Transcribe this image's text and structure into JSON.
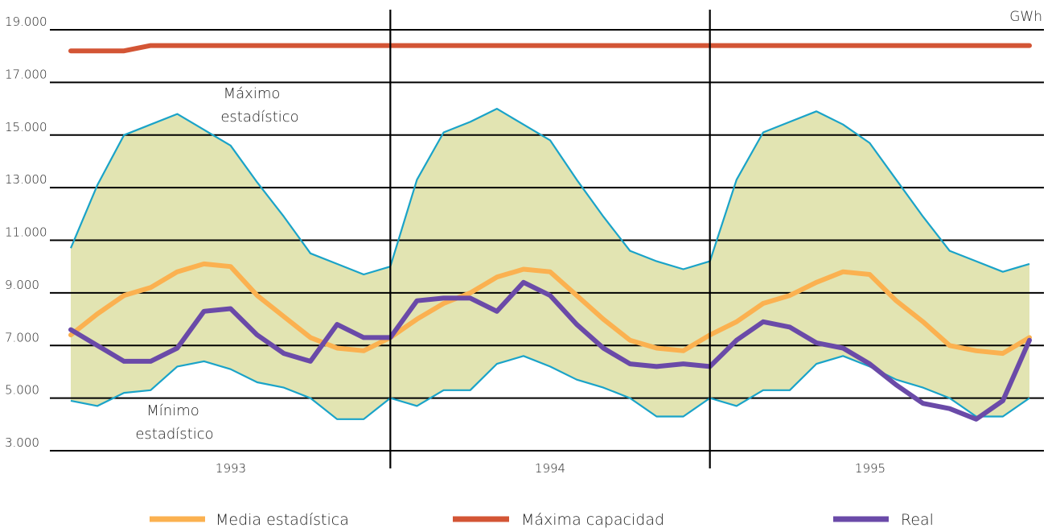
{
  "chart_data": {
    "type": "line",
    "unit": "GWh",
    "ylim": [
      3000,
      19000
    ],
    "yticks": [
      3000,
      5000,
      7000,
      9000,
      11000,
      13000,
      15000,
      17000,
      19000
    ],
    "ytick_labels": [
      "3.000",
      "5.000",
      "7.000",
      "9.000",
      "11.000",
      "13.000",
      "15.000",
      "17.000",
      "19.000"
    ],
    "years": [
      "1993",
      "1994",
      "1995"
    ],
    "annotations": {
      "max_line1": "Máximo",
      "max_line2": "estadístico",
      "min_line1": "Mínimo",
      "min_line2": "estadístico"
    },
    "band": {
      "max": [
        10700,
        13100,
        15000,
        15400,
        15800,
        15200,
        14600,
        13200,
        11900,
        10500,
        10100,
        9700,
        10000,
        13300,
        15100,
        15500,
        16000,
        15400,
        14800,
        13300,
        11900,
        10600,
        10200,
        9900,
        10200,
        13300,
        15100,
        15500,
        15900,
        15400,
        14700,
        13300,
        11900,
        10600,
        10200,
        9800,
        10100
      ],
      "min": [
        4900,
        4700,
        5200,
        5300,
        6200,
        6400,
        6100,
        5600,
        5400,
        5000,
        4200,
        4200,
        5000,
        4700,
        5300,
        5300,
        6300,
        6600,
        6200,
        5700,
        5400,
        5000,
        4300,
        4300,
        5000,
        4700,
        5300,
        5300,
        6300,
        6600,
        6200,
        5700,
        5400,
        5000,
        4300,
        4300,
        5000
      ],
      "fill_color": "#e2e4b2",
      "line_color": "#1aa3c8"
    },
    "series": [
      {
        "name": "Media estadística",
        "color": "#fbb150",
        "values": [
          7400,
          8200,
          8900,
          9200,
          9800,
          10100,
          10000,
          8900,
          8100,
          7300,
          6900,
          6800,
          7300,
          8000,
          8600,
          9000,
          9600,
          9900,
          9800,
          8900,
          8000,
          7200,
          6900,
          6800,
          7400,
          7900,
          8600,
          8900,
          9400,
          9800,
          9700,
          8700,
          7900,
          7000,
          6800,
          6700,
          7300
        ]
      },
      {
        "name": "Máxima capacidad",
        "color": "#d35535",
        "values": [
          18200,
          18200,
          18200,
          18400,
          18400,
          18400,
          18400,
          18400,
          18400,
          18400,
          18400,
          18400,
          18400,
          18400,
          18400,
          18400,
          18400,
          18400,
          18400,
          18400,
          18400,
          18400,
          18400,
          18400,
          18400,
          18400,
          18400,
          18400,
          18400,
          18400,
          18400,
          18400,
          18400,
          18400,
          18400,
          18400,
          18400
        ]
      },
      {
        "name": "Real",
        "color": "#6a4aa8",
        "values": [
          7600,
          7000,
          6400,
          6400,
          6900,
          8300,
          8400,
          7400,
          6700,
          6400,
          7800,
          7300,
          7300,
          8700,
          8800,
          8800,
          8300,
          9400,
          8900,
          7800,
          6900,
          6300,
          6200,
          6300,
          6200,
          7200,
          7900,
          7700,
          7100,
          6900,
          6300,
          5500,
          4800,
          4600,
          4200,
          4900,
          7200
        ]
      }
    ],
    "legend": [
      "Media estadística",
      "Máxima capacidad",
      "Real"
    ],
    "grid": true
  }
}
